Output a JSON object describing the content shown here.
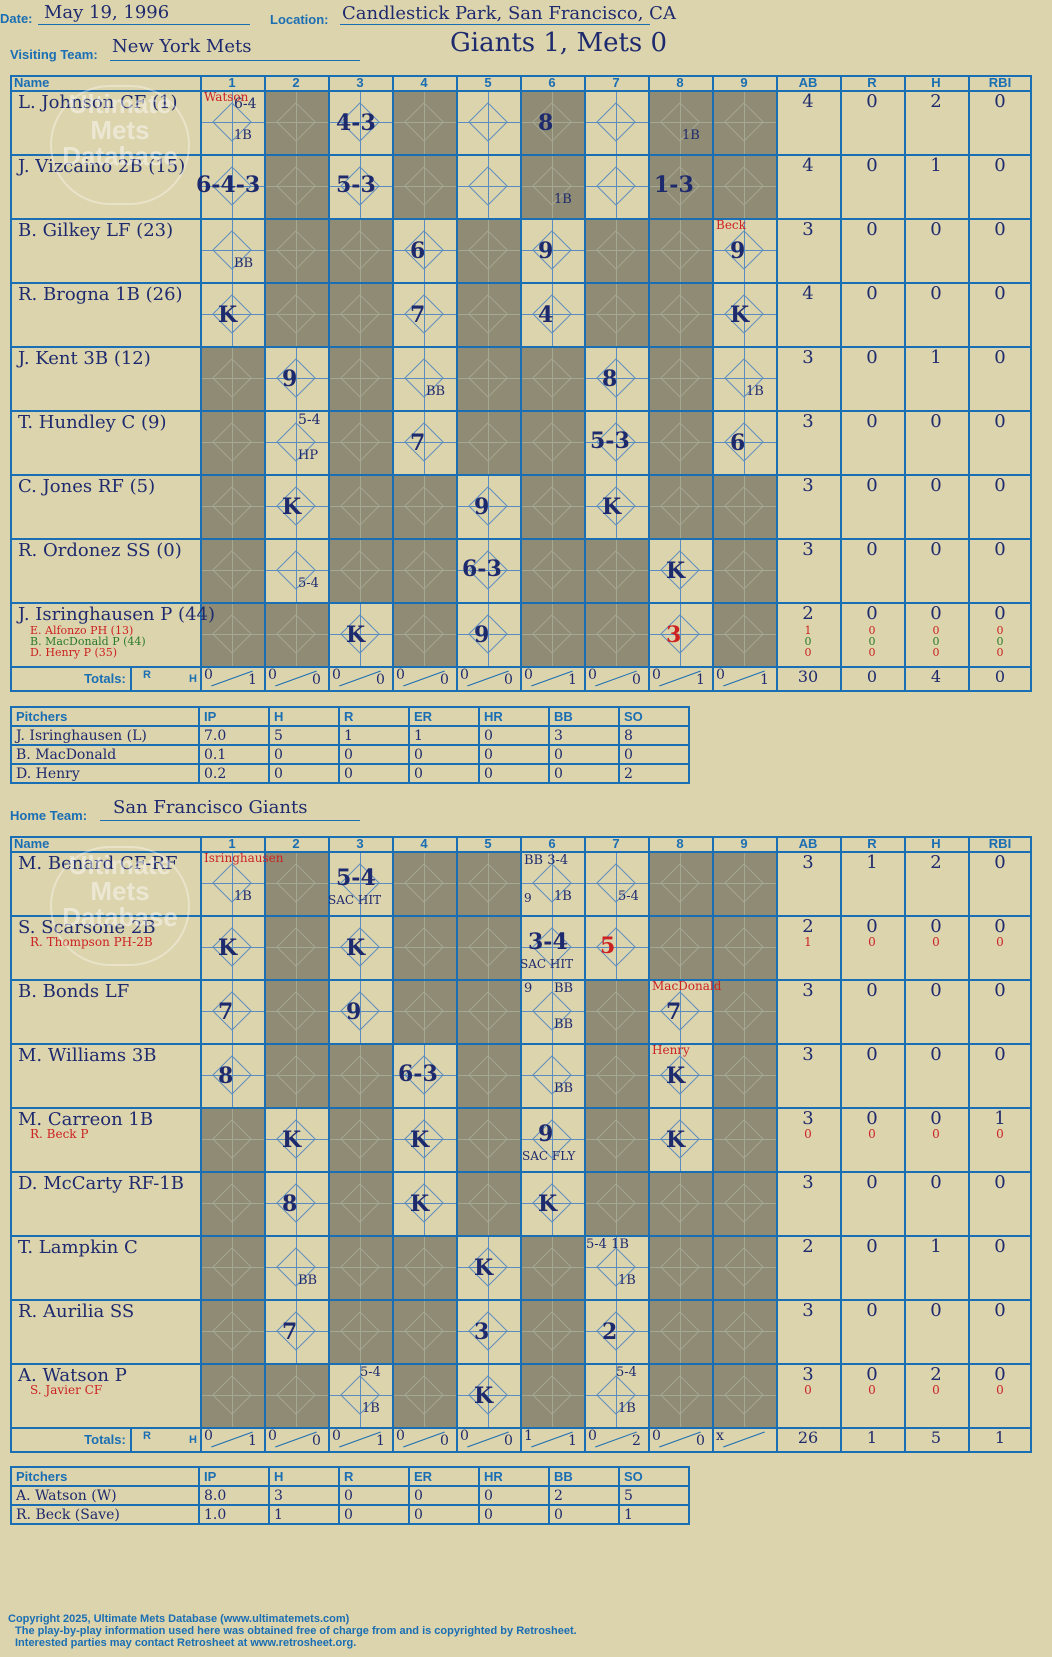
{
  "header": {
    "date_label": "Date:",
    "date": "May 19, 1996",
    "location_label": "Location:",
    "location": "Candlestick Park, San Francisco, CA",
    "visiting_label": "Visiting Team:",
    "visiting_team": "New York Mets",
    "result": "Giants 1, Mets 0",
    "home_label": "Home Team:",
    "home_team": "San Francisco Giants"
  },
  "grid_headers": [
    "Name",
    "1",
    "2",
    "3",
    "4",
    "5",
    "6",
    "7",
    "8",
    "9",
    "AB",
    "R",
    "H",
    "RBI"
  ],
  "totals_label": "Totals:",
  "rh_r": "R",
  "rh_h": "H",
  "watermark": {
    "line1": "Ultimate",
    "line2": "Mets",
    "line3": "Database",
    "url": "ultimatemets.com"
  },
  "visitors": {
    "rows": [
      {
        "name": "L. Johnson CF (1)",
        "stats": [
          "4",
          "0",
          "2",
          "0"
        ]
      },
      {
        "name": "J. Vizcaino 2B (15)",
        "stats": [
          "4",
          "0",
          "1",
          "0"
        ]
      },
      {
        "name": "B. Gilkey LF (23)",
        "stats": [
          "3",
          "0",
          "0",
          "0"
        ]
      },
      {
        "name": "R. Brogna 1B (26)",
        "stats": [
          "4",
          "0",
          "0",
          "0"
        ]
      },
      {
        "name": "J. Kent 3B (12)",
        "stats": [
          "3",
          "0",
          "1",
          "0"
        ]
      },
      {
        "name": "T. Hundley C (9)",
        "stats": [
          "3",
          "0",
          "0",
          "0"
        ]
      },
      {
        "name": "C. Jones RF (5)",
        "stats": [
          "3",
          "0",
          "0",
          "0"
        ]
      },
      {
        "name": "R. Ordonez SS (0)",
        "stats": [
          "3",
          "0",
          "0",
          "0"
        ]
      },
      {
        "name": "J. Isringhausen P (44)",
        "stats": [
          "2",
          "0",
          "0",
          "0"
        ]
      }
    ],
    "subs": [
      {
        "name": "E. Alfonzo PH (13)",
        "color": "red",
        "stats": [
          "1",
          "0",
          "0",
          "0"
        ]
      },
      {
        "name": "B. MacDonald P (44)",
        "color": "green",
        "stats": [
          "0",
          "0",
          "0",
          "0"
        ]
      },
      {
        "name": "D. Henry P (35)",
        "color": "red",
        "stats": [
          "0",
          "0",
          "0",
          "0"
        ]
      }
    ],
    "inning_totals": [
      [
        "0",
        "1"
      ],
      [
        "0",
        "0"
      ],
      [
        "0",
        "0"
      ],
      [
        "0",
        "0"
      ],
      [
        "0",
        "0"
      ],
      [
        "0",
        "1"
      ],
      [
        "0",
        "0"
      ],
      [
        "0",
        "1"
      ],
      [
        "0",
        "1"
      ]
    ],
    "totals": [
      "30",
      "0",
      "4",
      "0"
    ],
    "plays": {
      "p1": "6-4",
      "p2": "4-3",
      "p3": "8",
      "p4": "1B",
      "p5": "1B",
      "p6": "6-4-3",
      "p7": "5-3",
      "p8": "1B",
      "p9": "1-3",
      "p10": "BB",
      "p11": "6",
      "p12": "9",
      "p13": "9",
      "p14": "K",
      "p15": "7",
      "p16": "4",
      "p17": "K",
      "p18": "9",
      "p19": "BB",
      "p20": "8",
      "p21": "1B",
      "p22": "5-4",
      "p23": "HP",
      "p24": "7",
      "p25": "5-3",
      "p26": "6",
      "p27": "K",
      "p28": "9",
      "p29": "K",
      "p30": "5-4",
      "p31": "6-3",
      "p32": "K",
      "p33": "K",
      "p34": "9",
      "p35": "3",
      "n1": "Watson",
      "n2": "Beck"
    }
  },
  "visitor_pitchers": {
    "headers": [
      "Pitchers",
      "IP",
      "H",
      "R",
      "ER",
      "HR",
      "BB",
      "SO"
    ],
    "rows": [
      [
        "J. Isringhausen (L)",
        "7.0",
        "5",
        "1",
        "1",
        "0",
        "3",
        "8"
      ],
      [
        "B. MacDonald",
        "0.1",
        "0",
        "0",
        "0",
        "0",
        "0",
        "0"
      ],
      [
        "D. Henry",
        "0.2",
        "0",
        "0",
        "0",
        "0",
        "0",
        "2"
      ]
    ]
  },
  "home": {
    "rows": [
      {
        "name": "M. Benard CF-RF",
        "stats": [
          "3",
          "1",
          "2",
          "0"
        ]
      },
      {
        "name": "S. Scarsone 2B",
        "stats": [
          "2",
          "0",
          "0",
          "0"
        ]
      },
      {
        "name": "B. Bonds LF",
        "stats": [
          "3",
          "0",
          "0",
          "0"
        ]
      },
      {
        "name": "M. Williams 3B",
        "stats": [
          "3",
          "0",
          "0",
          "0"
        ]
      },
      {
        "name": "M. Carreon 1B",
        "stats": [
          "3",
          "0",
          "0",
          "1"
        ]
      },
      {
        "name": "D. McCarty RF-1B",
        "stats": [
          "3",
          "0",
          "0",
          "0"
        ]
      },
      {
        "name": "T. Lampkin C",
        "stats": [
          "2",
          "0",
          "1",
          "0"
        ]
      },
      {
        "name": "R. Aurilia SS",
        "stats": [
          "3",
          "0",
          "0",
          "0"
        ]
      },
      {
        "name": "A. Watson P",
        "stats": [
          "3",
          "0",
          "2",
          "0"
        ]
      }
    ],
    "subs": [
      {
        "name": "R. Thompson PH-2B",
        "row": 1,
        "stats": [
          "1",
          "0",
          "0",
          "0"
        ]
      },
      {
        "name": "R. Beck P",
        "row": 4,
        "stats": [
          "0",
          "0",
          "0",
          "0"
        ]
      },
      {
        "name": "S. Javier CF",
        "row": 8,
        "stats": [
          "0",
          "0",
          "0",
          "0"
        ]
      }
    ],
    "inning_totals": [
      [
        "0",
        "1"
      ],
      [
        "0",
        "0"
      ],
      [
        "0",
        "1"
      ],
      [
        "0",
        "0"
      ],
      [
        "0",
        "0"
      ],
      [
        "1",
        "1"
      ],
      [
        "0",
        "2"
      ],
      [
        "0",
        "0"
      ],
      [
        "x",
        ""
      ]
    ],
    "totals": [
      "26",
      "1",
      "5",
      "1"
    ],
    "plays": {
      "q1": "1B",
      "q2": "5-4",
      "q3": "SAC HIT",
      "q4": "BB 3-4",
      "q5": "9",
      "q6": "1B",
      "q7": "5-4",
      "q8": "K",
      "q9": "K",
      "q10": "3-4",
      "q11": "SAC HIT",
      "q12": "5",
      "q13": "7",
      "q14": "9",
      "q15": "9",
      "q16": "BB",
      "q17": "BB",
      "q18": "7",
      "q19": "8",
      "q20": "6-3",
      "q21": "BB",
      "q22": "K",
      "q23": "K",
      "q24": "K",
      "q25": "9",
      "q26": "SAC FLY",
      "q27": "K",
      "q28": "8",
      "q29": "K",
      "q30": "K",
      "q31": "BB",
      "q32": "K",
      "q33": "5-4 1B",
      "q34": "1B",
      "q35": "7",
      "q36": "3",
      "q37": "2",
      "q38": "5-4",
      "q39": "1B",
      "q40": "K",
      "q41": "5-4",
      "q42": "1B",
      "m1": "Isringhausen",
      "m2": "MacDonald",
      "m3": "Henry"
    }
  },
  "home_pitchers": {
    "headers": [
      "Pitchers",
      "IP",
      "H",
      "R",
      "ER",
      "HR",
      "BB",
      "SO"
    ],
    "rows": [
      [
        "A. Watson (W)",
        "8.0",
        "3",
        "0",
        "0",
        "0",
        "2",
        "5"
      ],
      [
        "R. Beck (Save)",
        "1.0",
        "1",
        "0",
        "0",
        "0",
        "0",
        "1"
      ]
    ]
  },
  "footer": {
    "line1": "Copyright 2025, Ultimate Mets Database (www.ultimatemets.com)",
    "line2": "The play-by-play information used here was obtained free of charge from and is copyrighted by Retrosheet.",
    "line3": "Interested parties may contact Retrosheet at www.retrosheet.org."
  }
}
